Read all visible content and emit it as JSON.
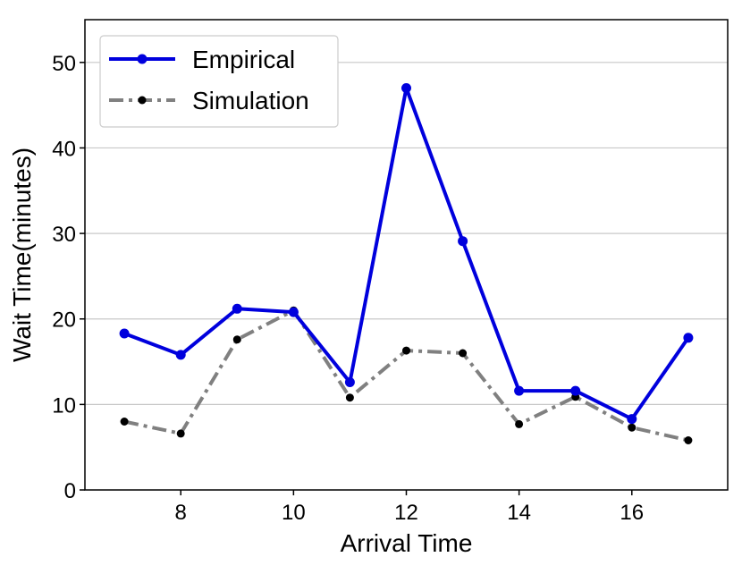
{
  "chart_data": {
    "type": "line",
    "title": "",
    "xlabel": "Arrival Time",
    "ylabel": "Wait Time(minutes)",
    "xlim": [
      6.3,
      17.7
    ],
    "ylim": [
      0,
      55
    ],
    "xticks": [
      8,
      10,
      12,
      14,
      16
    ],
    "yticks": [
      0,
      10,
      20,
      30,
      40,
      50
    ],
    "grid": "horizontal",
    "legend_position": "top-left",
    "x": [
      7,
      8,
      9,
      10,
      11,
      12,
      13,
      14,
      15,
      16,
      17
    ],
    "series": [
      {
        "name": "Empirical",
        "values": [
          18.3,
          15.8,
          21.2,
          20.8,
          12.6,
          47.0,
          29.1,
          11.6,
          11.6,
          8.3,
          17.8
        ],
        "color": "#0000dd",
        "marker_color": "#0000dd",
        "style": "solid"
      },
      {
        "name": "Simulation",
        "values": [
          8.0,
          6.6,
          17.6,
          21.0,
          10.8,
          16.3,
          16.0,
          7.7,
          10.9,
          7.3,
          5.8
        ],
        "color": "#808080",
        "marker_color": "#000000",
        "style": "dashdot"
      }
    ]
  }
}
